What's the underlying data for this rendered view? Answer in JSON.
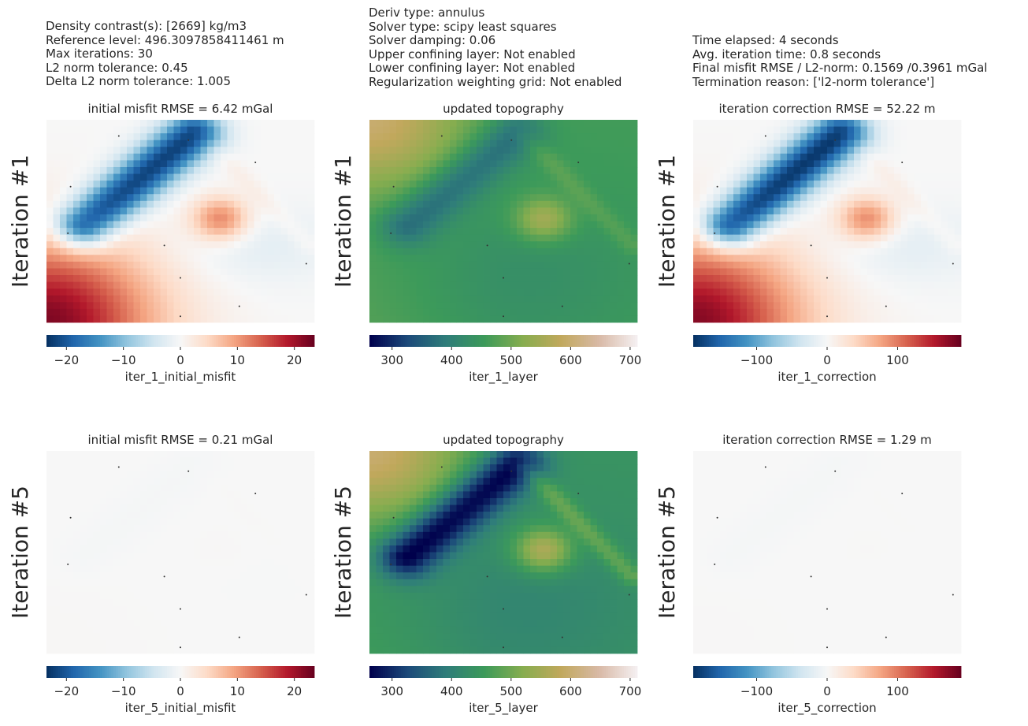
{
  "info": {
    "left": [
      "Density contrast(s): [2669] kg/m3",
      "Reference level: 496.3097858411461 m",
      "Max iterations: 30",
      "L2 norm tolerance: 0.45",
      "Delta L2 norm tolerance: 1.005"
    ],
    "middle": [
      "Deriv type: annulus",
      "Solver type: scipy least squares",
      "Solver damping: 0.06",
      "Upper confining layer: Not enabled",
      "Lower confining layer: Not enabled",
      "Regularization weighting grid: Not enabled"
    ],
    "right": [
      "Time elapsed: 4 seconds",
      "Avg. iteration time: 0.8 seconds",
      "Final misfit RMSE / L2-norm: 0.1569 /0.3961 mGal",
      "Termination reason: ['l2-norm tolerance']"
    ]
  },
  "colors": {
    "diverging": [
      "#053061",
      "#2166ac",
      "#4393c3",
      "#92c5de",
      "#d1e5f0",
      "#f7f7f7",
      "#fddbc7",
      "#f4a582",
      "#d6604d",
      "#b2182b",
      "#67001f"
    ],
    "topo": [
      "#00004c",
      "#1c4a7a",
      "#2f7d7a",
      "#3c9a5a",
      "#86ad4f",
      "#c1a85c",
      "#d8b9a6",
      "#f5f0f2"
    ]
  },
  "chart_data": [
    {
      "type": "heatmap",
      "row_label": "Iteration #1",
      "title": "initial misfit RMSE = 6.42 mGal",
      "colorbar_label": "iter_1_initial_misfit",
      "colormap": "diverging",
      "clim": [
        -23.5,
        23.5
      ],
      "ticks": [
        -20,
        -10,
        0,
        10,
        20
      ],
      "tick_labels": [
        "−20",
        "−10",
        "0",
        "10",
        "20"
      ],
      "field": {
        "ridge": {
          "start": [
            0.14,
            0.52
          ],
          "end": [
            0.55,
            0.07
          ],
          "width": 0.075,
          "amplitude": -22
        },
        "blob": {
          "center": [
            0.65,
            0.49
          ],
          "radius": 0.075,
          "amplitude": 12
        },
        "corner": {
          "center": [
            0.0,
            1.0
          ],
          "radius": 0.42,
          "amplitude": 22
        },
        "wide_low": {
          "center": [
            0.78,
            0.62
          ],
          "radius": 0.22,
          "amplitude": -2.5
        },
        "band": {
          "amplitude": 1.5
        }
      }
    },
    {
      "type": "heatmap",
      "row_label": "Iteration #1",
      "title": "updated topography",
      "colorbar_label": "iter_1_layer",
      "colormap": "topo",
      "clim": [
        262,
        712
      ],
      "ticks": [
        300,
        400,
        500,
        600,
        700
      ],
      "tick_labels": [
        "300",
        "400",
        "500",
        "600",
        "700"
      ],
      "field": {
        "base": 460,
        "diag": 190,
        "corner": 140,
        "ridge": {
          "amplitude": -95
        },
        "blob": {
          "amplitude": 110
        },
        "band": {
          "amplitude": 30
        }
      }
    },
    {
      "type": "heatmap",
      "row_label": "Iteration #1",
      "title": "iteration correction RMSE = 52.22 m",
      "colorbar_label": "iter_1_correction",
      "colormap": "diverging",
      "clim": [
        -190,
        190
      ],
      "ticks": [
        -100,
        0,
        100
      ],
      "tick_labels": [
        "−100",
        "0",
        "100"
      ],
      "field": {
        "ridge": {
          "amplitude": -185
        },
        "blob": {
          "amplitude": 95
        },
        "corner": {
          "amplitude": 175
        },
        "wide_low": {
          "amplitude": -20
        },
        "band": {
          "amplitude": 12
        }
      }
    },
    {
      "type": "heatmap",
      "row_label": "Iteration #5",
      "title": "initial misfit RMSE = 0.21 mGal",
      "colorbar_label": "iter_5_initial_misfit",
      "colormap": "diverging",
      "clim": [
        -23.5,
        23.5
      ],
      "ticks": [
        -20,
        -10,
        0,
        10,
        20
      ],
      "tick_labels": [
        "−20",
        "−10",
        "0",
        "10",
        "20"
      ],
      "field": {
        "ridge": {
          "amplitude": -0.4
        },
        "blob": {
          "amplitude": 0.2
        },
        "corner": {
          "amplitude": 0.2
        },
        "wide_low": {
          "amplitude": -0.1
        },
        "band": {
          "amplitude": 0.1
        }
      }
    },
    {
      "type": "heatmap",
      "row_label": "Iteration #5",
      "title": "updated topography",
      "colorbar_label": "iter_5_layer",
      "colormap": "topo",
      "clim": [
        262,
        712
      ],
      "ticks": [
        300,
        400,
        500,
        600,
        700
      ],
      "tick_labels": [
        "300",
        "400",
        "500",
        "600",
        "700"
      ],
      "field": {
        "base": 440,
        "diag": 180,
        "corner": 160,
        "ridge": {
          "amplitude": -190
        },
        "blob": {
          "amplitude": 140
        },
        "band": {
          "amplitude": 60
        }
      }
    },
    {
      "type": "heatmap",
      "row_label": "Iteration #5",
      "title": "iteration correction RMSE = 1.29 m",
      "colorbar_label": "iter_5_correction",
      "colormap": "diverging",
      "clim": [
        -190,
        190
      ],
      "ticks": [
        -100,
        0,
        100
      ],
      "tick_labels": [
        "−100",
        "0",
        "100"
      ],
      "field": {
        "ridge": {
          "amplitude": -3
        },
        "blob": {
          "amplitude": 1
        },
        "corner": {
          "amplitude": 1
        },
        "wide_low": {
          "amplitude": -0.5
        },
        "band": {
          "amplitude": 0.5
        }
      }
    }
  ],
  "constraint_points": [
    [
      0.27,
      0.08
    ],
    [
      0.53,
      0.1
    ],
    [
      0.78,
      0.21
    ],
    [
      0.09,
      0.33
    ],
    [
      0.08,
      0.56
    ],
    [
      0.44,
      0.62
    ],
    [
      0.97,
      0.71
    ],
    [
      0.5,
      0.78
    ],
    [
      0.72,
      0.92
    ],
    [
      0.5,
      0.97
    ]
  ]
}
